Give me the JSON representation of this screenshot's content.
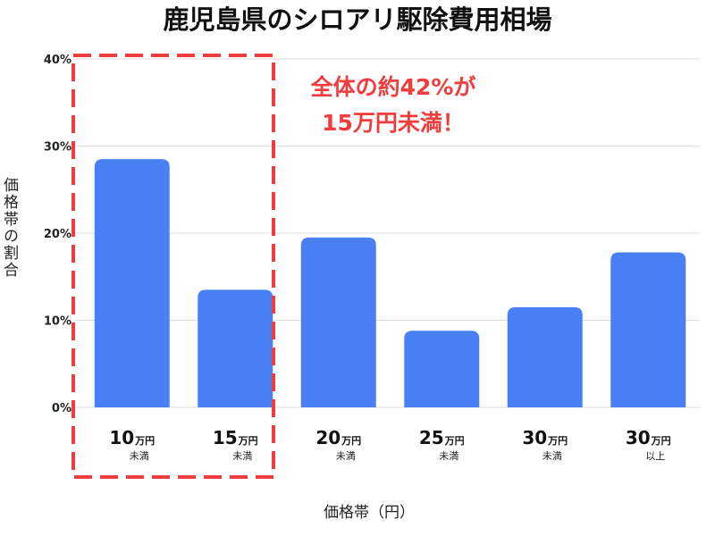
{
  "chart_data": {
    "type": "bar",
    "title": "鹿児島県のシロアリ駆除費用相場",
    "xlabel": "価格帯（円）",
    "ylabel": "価格帯の割合",
    "ylim": [
      0,
      40
    ],
    "yticks": [
      "0%",
      "10%",
      "20%",
      "30%",
      "40%"
    ],
    "grid": true,
    "categories": [
      {
        "amount": "10",
        "unit": "万円",
        "qualifier": "未満"
      },
      {
        "amount": "15",
        "unit": "万円",
        "qualifier": "未満"
      },
      {
        "amount": "20",
        "unit": "万円",
        "qualifier": "未満"
      },
      {
        "amount": "25",
        "unit": "万円",
        "qualifier": "未満"
      },
      {
        "amount": "30",
        "unit": "万円",
        "qualifier": "未満"
      },
      {
        "amount": "30",
        "unit": "万円",
        "qualifier": "以上"
      }
    ],
    "values": [
      28.5,
      13.5,
      19.5,
      8.8,
      11.5,
      17.8
    ],
    "bar_color": "#4a80f5",
    "highlight": {
      "covers_categories": [
        0,
        1
      ],
      "color": "#f03c3c",
      "annotation_lines": [
        "全体の約42%が",
        "15万円未満！"
      ]
    }
  }
}
